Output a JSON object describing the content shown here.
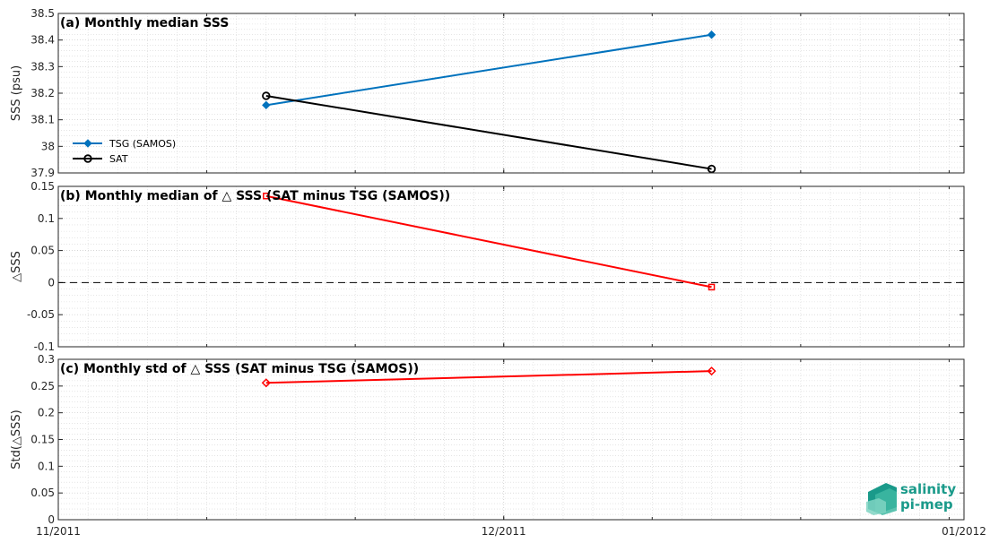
{
  "chart_data": [
    {
      "type": "line",
      "title": "(a) Monthly median SSS",
      "ylabel": "SSS (psu)",
      "xlim": [
        "2011-11-01",
        "2012-01-01"
      ],
      "ylim": [
        37.9,
        38.5
      ],
      "yticks": [
        37.9,
        38,
        38.1,
        38.2,
        38.3,
        38.4,
        38.5
      ],
      "ytick_labels": [
        "37.9",
        "38",
        "38.1",
        "38.2",
        "38.3",
        "38.4",
        "38.5"
      ],
      "grid": true,
      "legend": "bottom-left",
      "series": [
        {
          "name": "TSG (SAMOS)",
          "color": "#0072bd",
          "marker": "diamond-filled",
          "x": [
            "2011-11-15",
            "2011-12-15"
          ],
          "values": [
            38.155,
            38.42
          ]
        },
        {
          "name": "SAT",
          "color": "#000000",
          "marker": "circle-open",
          "x": [
            "2011-11-15",
            "2011-12-15"
          ],
          "values": [
            38.19,
            37.915
          ]
        }
      ]
    },
    {
      "type": "line",
      "title": "(b) Monthly median of △ SSS (SAT minus TSG (SAMOS))",
      "ylabel": "△SSS",
      "xlim": [
        "2011-11-01",
        "2012-01-01"
      ],
      "ylim": [
        -0.1,
        0.15
      ],
      "yticks": [
        -0.1,
        -0.05,
        0,
        0.05,
        0.1,
        0.15
      ],
      "ytick_labels": [
        "-0.1",
        "-0.05",
        "0",
        "0.05",
        "0.1",
        "0.15"
      ],
      "grid": true,
      "reference_line": 0,
      "series": [
        {
          "color": "#ff0000",
          "marker": "square-open",
          "x": [
            "2011-11-15",
            "2011-12-15"
          ],
          "values": [
            0.135,
            -0.007
          ]
        }
      ]
    },
    {
      "type": "line",
      "title": "(c) Monthly std of △ SSS (SAT minus TSG (SAMOS))",
      "ylabel": "Std(△SSS)",
      "xlim": [
        "2011-11-01",
        "2012-01-01"
      ],
      "ylim": [
        0,
        0.3
      ],
      "yticks": [
        0,
        0.05,
        0.1,
        0.15,
        0.2,
        0.25,
        0.3
      ],
      "ytick_labels": [
        "0",
        "0.05",
        "0.1",
        "0.15",
        "0.2",
        "0.25",
        "0.3"
      ],
      "grid": true,
      "series": [
        {
          "color": "#ff0000",
          "marker": "diamond-open",
          "x": [
            "2011-11-15",
            "2011-12-15"
          ],
          "values": [
            0.256,
            0.278
          ]
        }
      ]
    }
  ],
  "xaxis": {
    "ticks": [
      "2011-11-01",
      "2011-12-01",
      "2012-01-01"
    ],
    "tick_labels": [
      "11/2011",
      "12/2011",
      "01/2012"
    ]
  },
  "logo": {
    "line1": "salinity",
    "line2": "pi-mep",
    "color": "#1a9a8a"
  }
}
